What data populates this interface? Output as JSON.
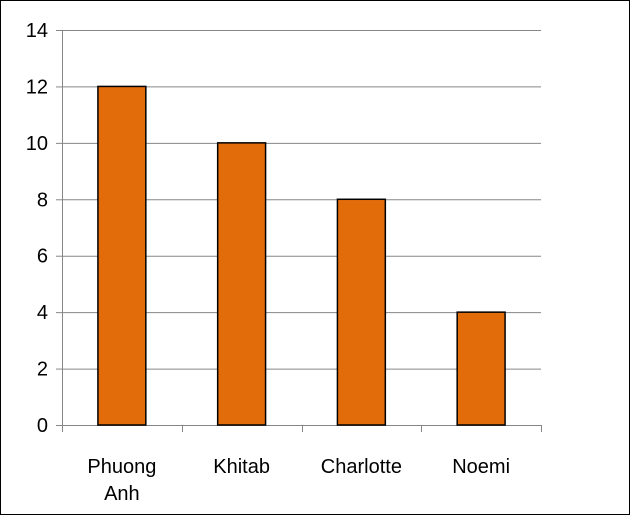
{
  "chart_data": {
    "type": "bar",
    "title": "",
    "xlabel": "",
    "ylabel": "",
    "categories": [
      "Phuong Anh",
      "Khitab",
      "Charlotte",
      "Noemi"
    ],
    "values": [
      12,
      10,
      8,
      4
    ],
    "ylim": [
      0,
      14
    ],
    "yticks": [
      0,
      2,
      4,
      6,
      8,
      10,
      12,
      14
    ],
    "grid": true,
    "legend": "none",
    "colors": {
      "bar_fill": "#E36C0A",
      "bar_stroke": "#000000",
      "gridline": "#868686",
      "axis": "#868686"
    }
  }
}
